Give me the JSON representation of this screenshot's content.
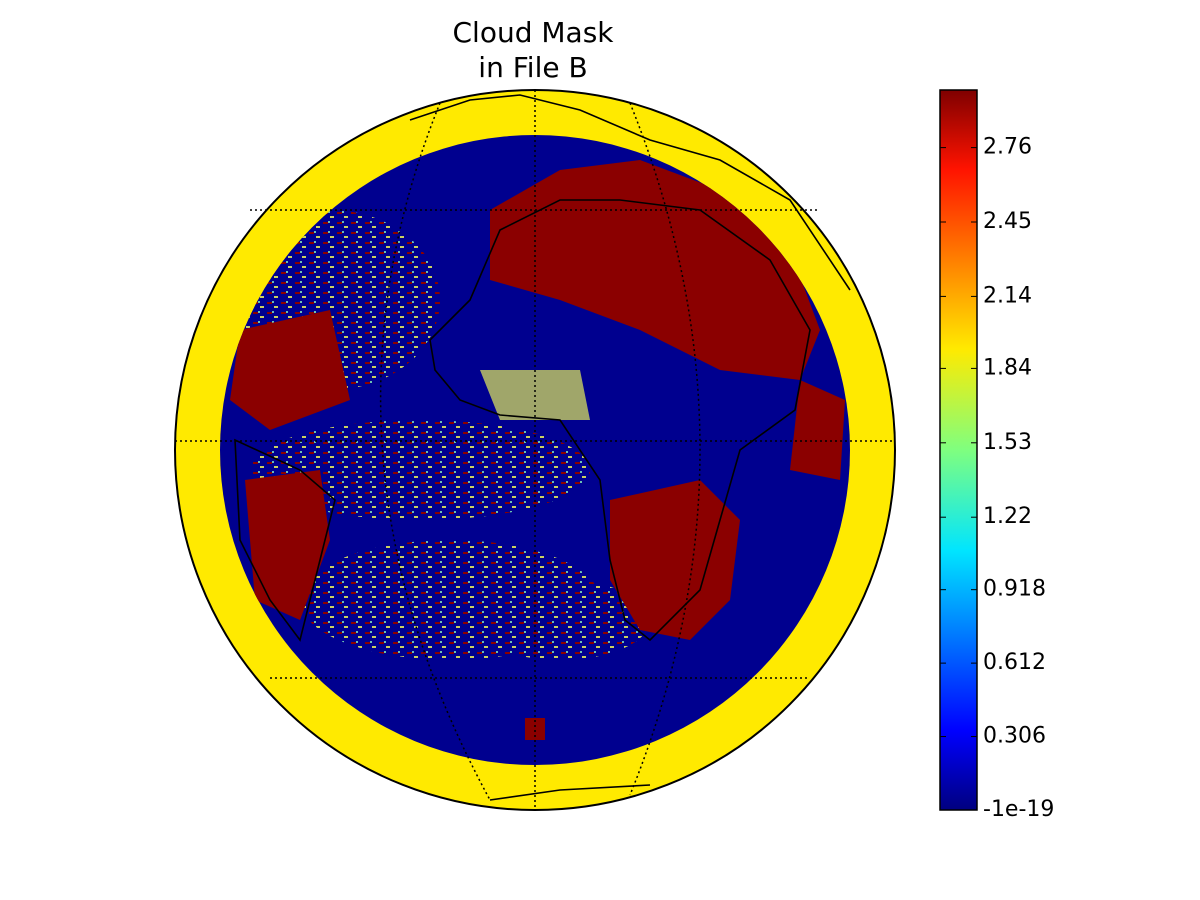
{
  "chart_data": {
    "type": "colormap",
    "title": [
      "Cloud Mask",
      "in File B"
    ],
    "colormap": "jet",
    "clim": [
      -1e-19,
      3
    ],
    "cticks": [
      -1e-19,
      0.306,
      0.612,
      0.918,
      1.22,
      1.53,
      1.84,
      2.14,
      2.45,
      2.76
    ]
  }
}
